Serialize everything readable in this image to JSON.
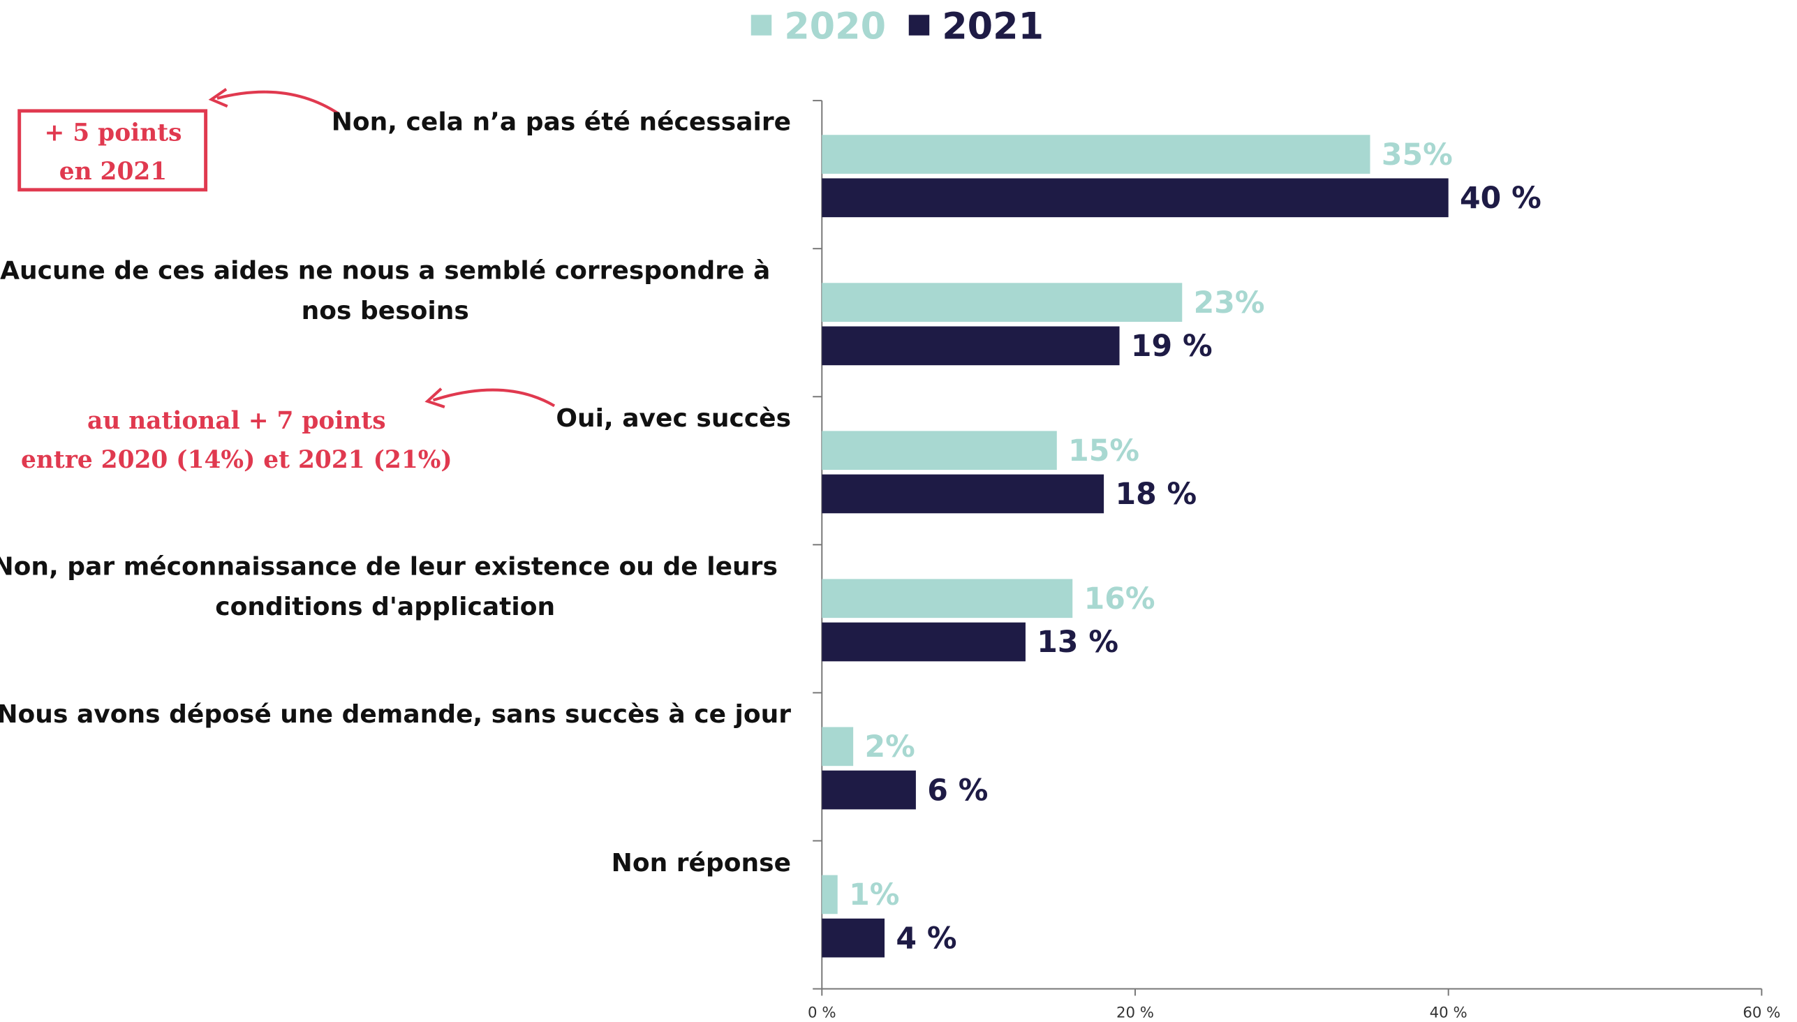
{
  "chart_data": {
    "type": "hbar",
    "categories": [
      "Non, cela n’a pas été nécessaire",
      "Aucune de ces aides ne nous a semblé correspondre à nos besoins",
      "Oui, avec succès",
      "Non, par méconnaissance de leur existence ou de leurs conditions d'application",
      "Nous avons déposé une demande, sans succès à ce jour",
      "Non réponse"
    ],
    "series": [
      {
        "name": "2020",
        "color": "#a8d8d1",
        "values": [
          35,
          23,
          15,
          16,
          2,
          1
        ],
        "value_labels": [
          "35%",
          "23%",
          "15%",
          "16%",
          "2%",
          "1%"
        ]
      },
      {
        "name": "2021",
        "color": "#1e1b45",
        "values": [
          40,
          19,
          18,
          13,
          6,
          4
        ],
        "value_labels": [
          "40 %",
          "19 %",
          "18 %",
          "13 %",
          "6 %",
          "4 %"
        ]
      }
    ],
    "xlim": [
      0,
      60
    ],
    "xticks": [
      {
        "value": 0,
        "label": "0 %"
      },
      {
        "value": 20,
        "label": "20 %"
      },
      {
        "value": 40,
        "label": "40 %"
      },
      {
        "value": 60,
        "label": "60 %"
      }
    ],
    "legend": "top",
    "annotations": [
      {
        "lines": [
          "+ 5 points",
          "en 2021"
        ]
      },
      {
        "lines": [
          "au national + 7 points",
          "entre 2020 (14%) et 2021 (21%)"
        ]
      }
    ]
  }
}
